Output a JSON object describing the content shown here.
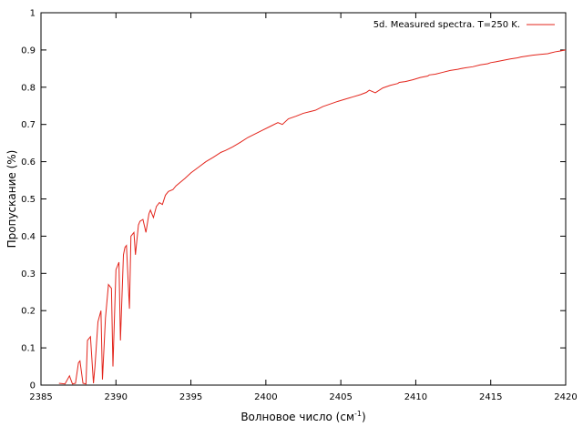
{
  "chart_data": {
    "type": "line",
    "title": "",
    "xlabel": "Волновое число (см",
    "xlabel_sup": "-1",
    "xlabel_end": ")",
    "ylabel": "Пропускание (%)",
    "xlim": [
      2385,
      2420
    ],
    "ylim": [
      0,
      1
    ],
    "x_ticks": [
      "2385",
      "2390",
      "2395",
      "2400",
      "2405",
      "2410",
      "2415",
      "2420"
    ],
    "y_ticks": [
      "0",
      "0.1",
      "0.2",
      "0.3",
      "0.4",
      "0.5",
      "0.6",
      "0.7",
      "0.8",
      "0.9",
      "1"
    ],
    "grid": false,
    "legend_position": "top-right",
    "series": [
      {
        "name": "5d. Measured spectra. T=250 K.",
        "color": "#e3241b",
        "x": [
          2386.2,
          2386.6,
          2386.9,
          2387.1,
          2387.3,
          2387.5,
          2387.6,
          2387.8,
          2388.0,
          2388.1,
          2388.3,
          2388.5,
          2388.6,
          2388.8,
          2389.0,
          2389.1,
          2389.3,
          2389.5,
          2389.7,
          2389.8,
          2390.0,
          2390.2,
          2390.3,
          2390.5,
          2390.6,
          2390.7,
          2390.9,
          2391.0,
          2391.2,
          2391.3,
          2391.5,
          2391.6,
          2391.8,
          2392.0,
          2392.2,
          2392.3,
          2392.5,
          2392.7,
          2392.9,
          2393.1,
          2393.3,
          2393.5,
          2393.8,
          2394.0,
          2394.3,
          2394.6,
          2395.0,
          2395.5,
          2396.0,
          2396.5,
          2397.0,
          2397.3,
          2397.8,
          2398.3,
          2398.8,
          2399.3,
          2399.8,
          2400.3,
          2400.8,
          2401.1,
          2401.5,
          2402.0,
          2402.5,
          2403.0,
          2403.3,
          2403.8,
          2404.3,
          2404.8,
          2405.3,
          2405.8,
          2406.3,
          2406.7,
          2406.9,
          2407.3,
          2407.8,
          2408.3,
          2408.8,
          2408.9,
          2409.3,
          2409.8,
          2410.3,
          2410.8,
          2410.9,
          2411.3,
          2411.8,
          2412.3,
          2412.8,
          2413.0,
          2413.3,
          2413.8,
          2414.3,
          2414.8,
          2415.0,
          2415.3,
          2415.8,
          2416.3,
          2416.8,
          2417.0,
          2417.3,
          2417.8,
          2418.3,
          2418.8,
          2419.0,
          2419.3,
          2419.6,
          2420.0
        ],
        "values": [
          0.005,
          0.003,
          0.025,
          0.003,
          0.005,
          0.06,
          0.065,
          0.005,
          0.003,
          0.12,
          0.13,
          0.005,
          0.05,
          0.17,
          0.2,
          0.015,
          0.18,
          0.27,
          0.26,
          0.05,
          0.31,
          0.33,
          0.12,
          0.35,
          0.37,
          0.375,
          0.205,
          0.4,
          0.41,
          0.35,
          0.43,
          0.44,
          0.445,
          0.41,
          0.46,
          0.47,
          0.45,
          0.48,
          0.49,
          0.485,
          0.51,
          0.52,
          0.525,
          0.535,
          0.545,
          0.555,
          0.57,
          0.585,
          0.6,
          0.612,
          0.625,
          0.63,
          0.64,
          0.652,
          0.665,
          0.675,
          0.685,
          0.695,
          0.705,
          0.7,
          0.715,
          0.722,
          0.73,
          0.735,
          0.738,
          0.748,
          0.755,
          0.762,
          0.768,
          0.774,
          0.78,
          0.786,
          0.792,
          0.785,
          0.798,
          0.805,
          0.81,
          0.813,
          0.815,
          0.82,
          0.826,
          0.83,
          0.833,
          0.835,
          0.84,
          0.845,
          0.848,
          0.85,
          0.852,
          0.855,
          0.86,
          0.863,
          0.866,
          0.868,
          0.872,
          0.876,
          0.879,
          0.881,
          0.883,
          0.886,
          0.888,
          0.89,
          0.892,
          0.895,
          0.897,
          0.9
        ]
      }
    ]
  }
}
